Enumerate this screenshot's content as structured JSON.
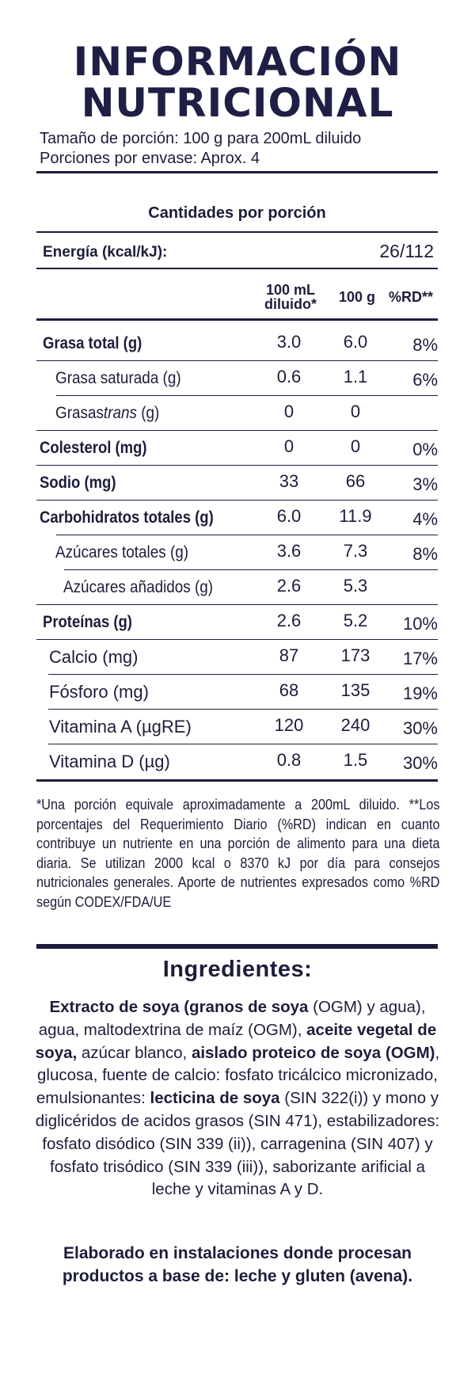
{
  "title": {
    "line1": "INFORMACIÓN",
    "line2": "NUTRICIONAL"
  },
  "serving": {
    "size": "Tamaño de porción: 100 g para 200mL diluido",
    "per_container": "Porciones por envase: Aprox. 4"
  },
  "amounts_header": "Cantidades por porción",
  "energy": {
    "label": "Energía (kcal/kJ):",
    "value": "26/112"
  },
  "columns": {
    "col1_line1": "100 mL",
    "col1_line2": "diluido*",
    "col2": "100 g",
    "col3": "%RD**"
  },
  "rows": [
    {
      "label": "Grasa total (g)",
      "v1": "3.0",
      "v2": "6.0",
      "v3": "8%"
    },
    {
      "label": "Grasa saturada (g)",
      "v1": "0.6",
      "v2": "1.1",
      "v3": "6%"
    },
    {
      "label_pre": "Grasas ",
      "label_em": "trans",
      "label_post": " (g)",
      "v1": "0",
      "v2": "0",
      "v3": ""
    },
    {
      "label": "Colesterol (mg)",
      "v1": "0",
      "v2": "0",
      "v3": "0%"
    },
    {
      "label": "Sodio (mg)",
      "v1": "33",
      "v2": "66",
      "v3": "3%"
    },
    {
      "label": "Carbohidratos totales (g)",
      "v1": "6.0",
      "v2": "11.9",
      "v3": "4%"
    },
    {
      "label": "Azúcares totales (g)",
      "v1": "3.6",
      "v2": "7.3",
      "v3": "8%"
    },
    {
      "label": "Azúcares añadidos (g)",
      "v1": "2.6",
      "v2": "5.3",
      "v3": ""
    },
    {
      "label": "Proteínas (g)",
      "v1": "2.6",
      "v2": "5.2",
      "v3": "10%"
    },
    {
      "label": "Calcio (mg)",
      "v1": "87",
      "v2": "173",
      "v3": "17%"
    },
    {
      "label": "Fósforo (mg)",
      "v1": "68",
      "v2": "135",
      "v3": "19%"
    },
    {
      "label": "Vitamina A (µgRE)",
      "v1": "120",
      "v2": "240",
      "v3": "30%"
    },
    {
      "label": "Vitamina D (µg)",
      "v1": "0.8",
      "v2": "1.5",
      "v3": "30%"
    }
  ],
  "footnote": "*Una porción equivale aproximadamente a 200mL diluido. **Los porcentajes del Requerimiento Diario (%RD) indican en cuanto contribuye un nutriente en una porción de alimento para una dieta diaria. Se utilizan 2000 kcal o 8370 kJ por día para consejos nutricionales generales. Aporte de nutrientes expresados como %RD según CODEX/FDA/UE",
  "ingredients": {
    "title": "Ingredientes:",
    "p01": "Extracto de soya (granos de soya",
    "p02": " (OGM) y agua), agua, maltodextrina de maíz (OGM), ",
    "p03": "aceite vegetal de soya,",
    "p04": " azúcar blanco, ",
    "p05": "aislado proteico de soya (OGM)",
    "p06": ", glucosa, fuente de calcio: fosfato tricálcico micronizado, emulsionantes: ",
    "p07": "lecticina de soya",
    "p08": " (SIN 322(i)) y mono y diglicéridos de acidos grasos (SIN 471), estabilizadores: fosfato disódico (SIN 339 (ii)), carragenina (SIN 407) y fosfato trisódico (SIN 339 (iii)), saborizante arificial a leche y vitaminas A y D."
  },
  "allergen": "Elaborado en instalaciones donde procesan productos a base de: leche y gluten (avena)."
}
